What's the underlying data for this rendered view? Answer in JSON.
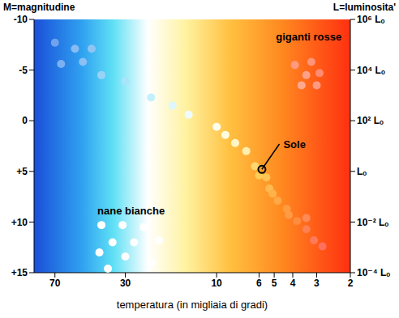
{
  "chart_data": {
    "type": "scatter",
    "x_label": "temperatura (in migliaia di gradi)",
    "y_label": "M=magnitudine",
    "y2_label": "L=luminosita'",
    "log": true,
    "grid": false,
    "xlim": [
      90,
      2
    ],
    "xticks": [
      70,
      30,
      10,
      6,
      5,
      4,
      3,
      2
    ],
    "ylim": [
      -10,
      15
    ],
    "yticks": [
      -10,
      -5,
      0,
      {
        "value": 5,
        "label": "+5"
      },
      {
        "value": 10,
        "label": "+10"
      },
      {
        "value": 15,
        "label": "+15"
      }
    ],
    "y2lim": [
      0.0001,
      1000000
    ],
    "y2ticks": [
      {
        "value": 1000000,
        "label": "10⁶ Lₒ"
      },
      {
        "value": 10000,
        "label": "10⁴ Lₒ"
      },
      {
        "value": 100,
        "label": "10² Lₒ"
      },
      {
        "value": 1,
        "label": "Lₒ"
      },
      {
        "value": 0.01,
        "label": "10⁻² Lₒ"
      },
      {
        "value": 0.0001,
        "label": "10⁻⁴ Lₒ"
      }
    ],
    "x": [
      70,
      65,
      55,
      45,
      50,
      40,
      30,
      22,
      17,
      14,
      10,
      9,
      8,
      7,
      6.3,
      6,
      5.5,
      5.3,
      5.1,
      4.8,
      4.3,
      4.2,
      3.8,
      3.4,
      3.1,
      2.8,
      3.4,
      3.9,
      3.4,
      3.2,
      2.9,
      3.6,
      3.0,
      40,
      31,
      24,
      35,
      27,
      20,
      41,
      30,
      22,
      37
    ],
    "values": [
      -7.7,
      -5.6,
      -7.1,
      -7.1,
      -5.8,
      -4.5,
      -3.9,
      -2.3,
      -1.5,
      -0.6,
      0.6,
      1.4,
      2.2,
      3.0,
      4.5,
      5.4,
      5.6,
      6.7,
      7.2,
      7.9,
      8.7,
      9.3,
      9.9,
      10.7,
      11.8,
      12.4,
      9.6,
      -5.5,
      -4.5,
      -5.8,
      -4.7,
      -3.5,
      -3.5,
      10.3,
      10.3,
      10.5,
      12,
      12,
      11.8,
      13,
      13.4,
      14,
      14.6
    ],
    "colors": [
      "#6fa3ee",
      "#7bb0f2",
      "#86bbf3",
      "#8fc5f5",
      "#8ac0f4",
      "#9ad2f7",
      "#a8e4fa",
      "#c4f0fc",
      "#dcf7fd",
      "#eefbff",
      "#fffff0",
      "#fffbe0",
      "#fff6c8",
      "#ffefb0",
      "#ffd870",
      "#ffcc55",
      "#ffc455",
      "#ffbb50",
      "#ffb24a",
      "#ffa845",
      "#ff9c40",
      "#ff9a45",
      "#ff8d40",
      "#ff8050",
      "#ff7a5a",
      "#ff7060",
      "#ff8a55",
      "#ff9a80",
      "#ffa088",
      "#ff9478",
      "#ff8c70",
      "#ffa890",
      "#ff9a82",
      "#ffffff",
      "#ffffff",
      "#ffffff",
      "#ffffff",
      "#ffffff",
      "#ffffff",
      "#ffffff",
      "#ffffff",
      "#ffffff",
      "#ffffff"
    ],
    "marker": "circle",
    "annotations": [
      {
        "text": "giganti rosse",
        "x": 3.3,
        "y": -8.3
      },
      {
        "text": "nane bianche",
        "x": 28,
        "y": 8.9
      },
      {
        "text": "Sole",
        "x": 4.7,
        "y": 2.3,
        "point": [
          5.8,
          4.8
        ]
      }
    ]
  }
}
